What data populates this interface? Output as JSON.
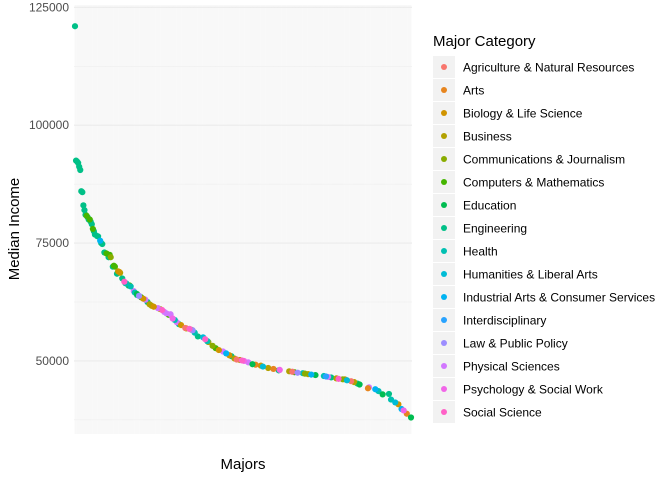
{
  "chart_data": {
    "type": "scatter",
    "title": "",
    "xlabel": "Majors",
    "ylabel": "Median Income",
    "x_tick_labels": "hidden",
    "ylim": [
      34500,
      125500
    ],
    "yticks": [
      50000,
      75000,
      100000,
      125000
    ],
    "ytick_labels": [
      "50000",
      "75000",
      "100000",
      "125000"
    ],
    "grid": true,
    "panel_background": "#ffffff",
    "grid_color": "#ebebeb",
    "legend": {
      "title": "Major Category",
      "placement": "right",
      "entries": [
        {
          "label": "Agriculture & Natural Resources",
          "color": "#F8766D"
        },
        {
          "label": "Arts",
          "color": "#E7851E"
        },
        {
          "label": "Biology & Life Science",
          "color": "#D09400"
        },
        {
          "label": "Business",
          "color": "#B2A100"
        },
        {
          "label": "Communications & Journalism",
          "color": "#89AC00"
        },
        {
          "label": "Computers & Mathematics",
          "color": "#45B500"
        },
        {
          "label": "Education",
          "color": "#00BC51"
        },
        {
          "label": "Engineering",
          "color": "#00C087"
        },
        {
          "label": "Health",
          "color": "#00C0B2"
        },
        {
          "label": "Humanities & Liberal Arts",
          "color": "#00BCD6"
        },
        {
          "label": "Industrial Arts & Consumer Services",
          "color": "#00B3F2"
        },
        {
          "label": "Interdisciplinary",
          "color": "#29A3FF"
        },
        {
          "label": "Law & Public Policy",
          "color": "#9C8DFF"
        },
        {
          "label": "Physical Sciences",
          "color": "#D277FF"
        },
        {
          "label": "Psychology & Social Work",
          "color": "#F166E8"
        },
        {
          "label": "Social Science",
          "color": "#FF61C7"
        }
      ]
    },
    "series": [
      {
        "name": "Engineering",
        "points": [
          [
            1,
            121000
          ],
          [
            2,
            92500
          ],
          [
            3,
            92300
          ],
          [
            4,
            92000
          ],
          [
            5,
            91200
          ],
          [
            6,
            90500
          ],
          [
            7,
            86000
          ],
          [
            8,
            85800
          ],
          [
            9,
            83000
          ],
          [
            10,
            82000
          ],
          [
            11,
            81000
          ],
          [
            13,
            80500
          ],
          [
            14,
            80000
          ],
          [
            16,
            79500
          ],
          [
            17,
            79000
          ],
          [
            19,
            77500
          ],
          [
            20,
            76800
          ],
          [
            22,
            76500
          ],
          [
            23,
            76400
          ],
          [
            26,
            75000
          ],
          [
            27,
            74800
          ],
          [
            29,
            73000
          ],
          [
            33,
            72000
          ],
          [
            37,
            70000
          ],
          [
            41,
            68500
          ],
          [
            46,
            67500
          ],
          [
            49,
            66500
          ],
          [
            52,
            66000
          ],
          [
            60,
            64000
          ],
          [
            70,
            62500
          ],
          [
            100,
            57800
          ],
          [
            118,
            55200
          ],
          [
            150,
            51000
          ],
          [
            195,
            48000
          ],
          [
            245,
            46500
          ],
          [
            270,
            45200
          ],
          [
            300,
            43000
          ]
        ]
      },
      {
        "name": "Computers & Mathematics",
        "points": [
          [
            12,
            80800
          ],
          [
            15,
            80000
          ],
          [
            18,
            78000
          ],
          [
            31,
            72800
          ],
          [
            34,
            72500
          ],
          [
            38,
            70200
          ],
          [
            39,
            70000
          ],
          [
            53,
            66000
          ],
          [
            64,
            63500
          ],
          [
            90,
            59800
          ],
          [
            135,
            52700
          ],
          [
            210,
            47600
          ]
        ]
      },
      {
        "name": "Business",
        "points": [
          [
            42,
            69000
          ],
          [
            44,
            68700
          ],
          [
            72,
            62000
          ],
          [
            74,
            61700
          ],
          [
            82,
            61000
          ],
          [
            107,
            56900
          ],
          [
            112,
            56600
          ],
          [
            128,
            54000
          ],
          [
            153,
            50500
          ],
          [
            158,
            50200
          ],
          [
            185,
            48500
          ],
          [
            205,
            47800
          ],
          [
            223,
            47200
          ],
          [
            250,
            46300
          ],
          [
            267,
            45500
          ]
        ]
      },
      {
        "name": "Physical Sciences",
        "points": [
          [
            57,
            64800
          ],
          [
            68,
            63000
          ],
          [
            80,
            61200
          ],
          [
            86,
            60400
          ],
          [
            88,
            60100
          ],
          [
            92,
            59900
          ],
          [
            98,
            58200
          ],
          [
            142,
            52000
          ],
          [
            166,
            49700
          ],
          [
            242,
            46600
          ],
          [
            281,
            44400
          ]
        ]
      },
      {
        "name": "Health",
        "points": [
          [
            50,
            66400
          ],
          [
            54,
            65800
          ],
          [
            58,
            64500
          ],
          [
            96,
            58700
          ],
          [
            115,
            56000
          ],
          [
            127,
            54200
          ],
          [
            218,
            47400
          ],
          [
            238,
            46800
          ],
          [
            290,
            43600
          ],
          [
            302,
            41800
          ]
        ]
      },
      {
        "name": "Biology & Life Science",
        "points": [
          [
            43,
            68900
          ],
          [
            66,
            63200
          ],
          [
            76,
            61500
          ],
          [
            102,
            57600
          ],
          [
            138,
            52300
          ],
          [
            148,
            51200
          ],
          [
            178,
            49000
          ],
          [
            258,
            46100
          ],
          [
            309,
            40800
          ]
        ]
      },
      {
        "name": "Agriculture & Natural Resources",
        "points": [
          [
            106,
            57000
          ],
          [
            155,
            50300
          ],
          [
            208,
            47700
          ],
          [
            264,
            45700
          ]
        ]
      },
      {
        "name": "Arts",
        "points": [
          [
            173,
            49200
          ],
          [
            190,
            48300
          ],
          [
            280,
            44200
          ],
          [
            317,
            38800
          ]
        ]
      },
      {
        "name": "Communications & Journalism",
        "points": [
          [
            35,
            72000
          ],
          [
            132,
            53200
          ],
          [
            220,
            47300
          ],
          [
            256,
            46100
          ]
        ]
      },
      {
        "name": "Education",
        "points": [
          [
            60,
            64200
          ],
          [
            170,
            49300
          ],
          [
            230,
            47000
          ],
          [
            272,
            45000
          ],
          [
            294,
            42900
          ],
          [
            321,
            38000
          ]
        ]
      },
      {
        "name": "Humanities & Liberal Arts",
        "points": [
          [
            123,
            55000
          ],
          [
            180,
            48800
          ],
          [
            260,
            45900
          ],
          [
            306,
            41200
          ]
        ]
      },
      {
        "name": "Industrial Arts & Consumer Services",
        "points": [
          [
            25,
            75500
          ],
          [
            145,
            51600
          ],
          [
            226,
            47100
          ],
          [
            287,
            44000
          ],
          [
            312,
            39800
          ]
        ]
      },
      {
        "name": "Interdisciplinary",
        "points": [
          [
            240,
            46700
          ]
        ]
      },
      {
        "name": "Law & Public Policy",
        "points": [
          [
            62,
            63800
          ],
          [
            113,
            56500
          ],
          [
            213,
            47500
          ]
        ]
      },
      {
        "name": "Psychology & Social Work",
        "points": [
          [
            94,
            59000
          ],
          [
            162,
            50000
          ],
          [
            196,
            48100
          ],
          [
            314,
            39500
          ]
        ]
      },
      {
        "name": "Social Science",
        "points": [
          [
            48,
            66800
          ],
          [
            84,
            60800
          ],
          [
            110,
            56800
          ],
          [
            125,
            54600
          ],
          [
            160,
            50100
          ],
          [
            252,
            46200
          ]
        ]
      }
    ]
  }
}
